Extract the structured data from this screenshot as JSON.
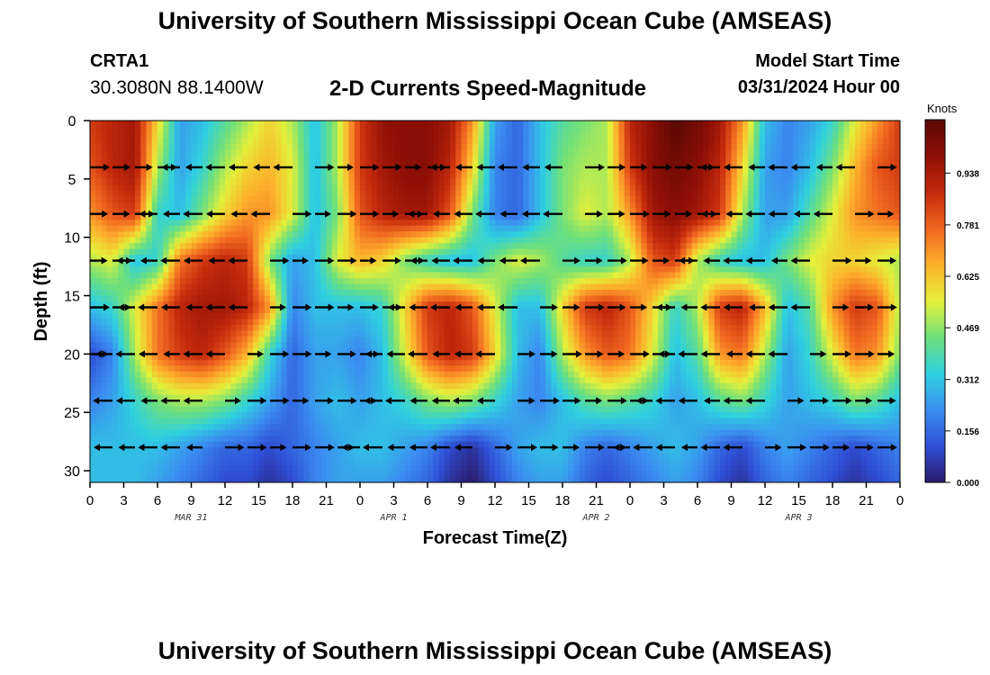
{
  "header": {
    "title": "University of Southern Mississippi Ocean Cube (AMSEAS)",
    "station": "CRTA1",
    "coords": "30.3080N  88.1400W",
    "plot_title": "2-D Currents Speed-Magnitude",
    "start_label": "Model Start Time",
    "start_value": "03/31/2024 Hour 00"
  },
  "footer": {
    "title": "University of Southern Mississippi Ocean Cube (AMSEAS)"
  },
  "colorbar": {
    "units": "Knots",
    "ticks": [
      "0.938",
      "0.781",
      "0.625",
      "0.469",
      "0.312",
      "0.156",
      "0.000"
    ],
    "tick_values": [
      0.938,
      0.781,
      0.625,
      0.469,
      0.312,
      0.156,
      0.0
    ],
    "colors": [
      "#2b1a6a",
      "#2f4fd6",
      "#3b8ff0",
      "#2fd0e0",
      "#6fe07a",
      "#e4f03a",
      "#fdb02c",
      "#f06620",
      "#c42a0c",
      "#8e0f06",
      "#5a0904"
    ]
  },
  "chart_data": {
    "type": "heatmap",
    "title": "2-D Currents Speed-Magnitude",
    "xlabel": "Forecast Time(Z)",
    "ylabel": "Depth (ft)",
    "xlim": [
      0,
      72
    ],
    "ylim": [
      0,
      31
    ],
    "x_ticks": [
      0,
      3,
      6,
      9,
      12,
      15,
      18,
      21,
      24,
      27,
      30,
      33,
      36,
      39,
      42,
      45,
      48,
      51,
      54,
      57,
      60,
      63,
      66,
      69,
      72
    ],
    "x_tick_labels": [
      "0",
      "3",
      "6",
      "9",
      "12",
      "15",
      "18",
      "21",
      "0",
      "3",
      "6",
      "9",
      "12",
      "15",
      "18",
      "21",
      "0",
      "3",
      "6",
      "9",
      "12",
      "15",
      "18",
      "21",
      "0"
    ],
    "y_ticks": [
      0,
      5,
      10,
      15,
      20,
      25,
      30
    ],
    "y_tick_labels": [
      "0",
      "5",
      "10",
      "15",
      "20",
      "25",
      "30"
    ],
    "date_labels": [
      {
        "label": "MAR 31",
        "hour": 9
      },
      {
        "label": "APR 1",
        "hour": 27
      },
      {
        "label": "APR 2",
        "hour": 45
      },
      {
        "label": "APR 3",
        "hour": 63
      }
    ],
    "vector_depths": [
      4,
      8,
      12,
      16,
      20,
      24,
      28
    ],
    "vector_interval_hours": 2,
    "speed_range": [
      0,
      1.1
    ],
    "speed_grid": {
      "hours": [
        0,
        2,
        4,
        6,
        8,
        10,
        12,
        14,
        16,
        18,
        20,
        22,
        24,
        26,
        28,
        30,
        32,
        34,
        36,
        38,
        40,
        42,
        44,
        46,
        48,
        50,
        52,
        54,
        56,
        58,
        60,
        62,
        64,
        66,
        68,
        70,
        72
      ],
      "depths": [
        0,
        4,
        8,
        12,
        16,
        20,
        24,
        28,
        31
      ],
      "values": [
        [
          0.85,
          0.9,
          0.95,
          0.6,
          0.25,
          0.3,
          0.4,
          0.5,
          0.6,
          0.5,
          0.3,
          0.5,
          0.85,
          0.98,
          1.0,
          1.0,
          0.95,
          0.7,
          0.25,
          0.15,
          0.3,
          0.4,
          0.45,
          0.5,
          0.9,
          1.0,
          1.1,
          1.05,
          0.95,
          0.7,
          0.3,
          0.2,
          0.25,
          0.35,
          0.55,
          0.7,
          0.85
        ],
        [
          0.8,
          0.9,
          0.95,
          0.5,
          0.25,
          0.35,
          0.5,
          0.6,
          0.65,
          0.55,
          0.3,
          0.5,
          0.85,
          0.95,
          1.0,
          1.0,
          0.9,
          0.6,
          0.2,
          0.15,
          0.3,
          0.45,
          0.5,
          0.5,
          0.85,
          1.0,
          1.05,
          1.0,
          0.9,
          0.6,
          0.25,
          0.2,
          0.3,
          0.45,
          0.65,
          0.8,
          0.85
        ],
        [
          0.7,
          0.8,
          0.85,
          0.35,
          0.3,
          0.45,
          0.6,
          0.7,
          0.7,
          0.55,
          0.3,
          0.45,
          0.8,
          0.9,
          0.95,
          0.95,
          0.8,
          0.45,
          0.2,
          0.15,
          0.3,
          0.45,
          0.55,
          0.5,
          0.7,
          0.95,
          1.0,
          0.95,
          0.85,
          0.5,
          0.25,
          0.25,
          0.4,
          0.55,
          0.7,
          0.75,
          0.8
        ],
        [
          0.5,
          0.55,
          0.3,
          0.35,
          0.75,
          0.85,
          0.9,
          0.85,
          0.45,
          0.25,
          0.3,
          0.55,
          0.65,
          0.6,
          0.45,
          0.35,
          0.3,
          0.3,
          0.45,
          0.55,
          0.5,
          0.4,
          0.35,
          0.35,
          0.5,
          0.8,
          0.85,
          0.5,
          0.35,
          0.3,
          0.3,
          0.45,
          0.55,
          0.6,
          0.6,
          0.55,
          0.5
        ],
        [
          0.3,
          0.35,
          0.55,
          0.75,
          0.9,
          0.95,
          0.95,
          0.9,
          0.7,
          0.2,
          0.3,
          0.3,
          0.3,
          0.35,
          0.6,
          0.85,
          0.9,
          0.8,
          0.55,
          0.3,
          0.3,
          0.6,
          0.85,
          0.9,
          0.8,
          0.6,
          0.35,
          0.5,
          0.85,
          0.9,
          0.65,
          0.3,
          0.4,
          0.7,
          0.85,
          0.8,
          0.5
        ],
        [
          0.1,
          0.2,
          0.5,
          0.75,
          0.85,
          0.9,
          0.8,
          0.65,
          0.35,
          0.15,
          0.25,
          0.25,
          0.2,
          0.3,
          0.55,
          0.8,
          0.9,
          0.85,
          0.6,
          0.3,
          0.2,
          0.5,
          0.7,
          0.8,
          0.75,
          0.55,
          0.3,
          0.4,
          0.7,
          0.75,
          0.5,
          0.25,
          0.35,
          0.55,
          0.75,
          0.7,
          0.45
        ],
        [
          0.2,
          0.25,
          0.35,
          0.45,
          0.5,
          0.5,
          0.45,
          0.35,
          0.25,
          0.15,
          0.25,
          0.3,
          0.25,
          0.3,
          0.35,
          0.45,
          0.5,
          0.45,
          0.35,
          0.25,
          0.2,
          0.3,
          0.4,
          0.45,
          0.4,
          0.35,
          0.25,
          0.3,
          0.4,
          0.45,
          0.35,
          0.25,
          0.3,
          0.35,
          0.45,
          0.4,
          0.3
        ],
        [
          0.3,
          0.3,
          0.3,
          0.3,
          0.25,
          0.2,
          0.15,
          0.15,
          0.1,
          0.15,
          0.2,
          0.25,
          0.3,
          0.3,
          0.25,
          0.2,
          0.1,
          0.05,
          0.15,
          0.25,
          0.3,
          0.3,
          0.2,
          0.15,
          0.2,
          0.25,
          0.3,
          0.25,
          0.15,
          0.1,
          0.2,
          0.25,
          0.2,
          0.15,
          0.1,
          0.15,
          0.2
        ],
        [
          0.3,
          0.3,
          0.3,
          0.25,
          0.2,
          0.15,
          0.1,
          0.1,
          0.05,
          0.1,
          0.2,
          0.25,
          0.25,
          0.25,
          0.2,
          0.15,
          0.05,
          0.0,
          0.1,
          0.2,
          0.25,
          0.25,
          0.15,
          0.1,
          0.15,
          0.2,
          0.25,
          0.2,
          0.1,
          0.05,
          0.15,
          0.2,
          0.15,
          0.1,
          0.05,
          0.1,
          0.15
        ]
      ]
    }
  }
}
